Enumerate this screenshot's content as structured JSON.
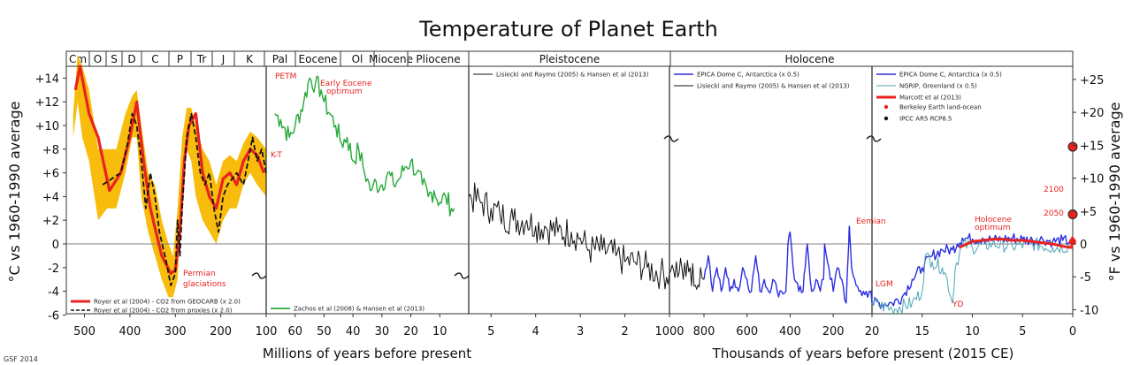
{
  "chart_data": {
    "type": "line",
    "title": "Temperature of Planet Earth",
    "ylabel_left": "°C vs 1960-1990 average",
    "ylabel_right": "°F vs 1960-1990 average",
    "xlabel_millions": "Millions of years before present",
    "xlabel_thousands": "Thousands of years before present (2015 CE)",
    "credit": "GSF 2014",
    "ylim_c": [
      -6,
      15
    ],
    "yticks_c": [
      "+14",
      "+12",
      "+10",
      "+8",
      "+6",
      "+4",
      "+2",
      "0",
      "-2",
      "-4",
      "-6"
    ],
    "yticks_f": [
      "+25",
      "+20",
      "+15",
      "+10",
      "+5",
      "0",
      "-5",
      "-10"
    ],
    "grid": false,
    "colors": {
      "proxy_band": "#f8b800",
      "red": "#e8231e",
      "green": "#27a93a",
      "black": "#111111",
      "blue": "#2b2ee0",
      "cyan": "#4fa6b8",
      "zero_line": "#808080"
    },
    "eras": [
      {
        "label": "Cm"
      },
      {
        "label": "O"
      },
      {
        "label": "S"
      },
      {
        "label": "D"
      },
      {
        "label": "C"
      },
      {
        "label": "P"
      },
      {
        "label": "Tr"
      },
      {
        "label": "J"
      },
      {
        "label": "K"
      },
      {
        "label": "Pal"
      },
      {
        "label": "Eocene"
      },
      {
        "label": "Ol"
      },
      {
        "label": "Miocene"
      },
      {
        "label": "Pliocene"
      },
      {
        "label": "Pleistocene"
      },
      {
        "label": "Holocene"
      }
    ],
    "panels": [
      {
        "name": "panel1",
        "unit": "Ma",
        "range": [
          540,
          100
        ],
        "ticks": [
          "500",
          "400",
          "300",
          "200",
          "100"
        ]
      },
      {
        "name": "panel2",
        "unit": "Ma",
        "range": [
          70,
          0
        ],
        "ticks": [
          "60",
          "50",
          "40",
          "30",
          "20",
          "10"
        ]
      },
      {
        "name": "panel3",
        "unit": "Ma",
        "range": [
          5.5,
          1
        ],
        "ticks": [
          "5",
          "4",
          "3",
          "2"
        ]
      },
      {
        "name": "panel4",
        "unit": "ka",
        "range": [
          1000,
          20
        ],
        "ticks": [
          "1000",
          "800",
          "600",
          "400",
          "200",
          "20"
        ]
      },
      {
        "name": "panel5",
        "unit": "ka",
        "range": [
          20,
          0
        ],
        "ticks": [
          "15",
          "10",
          "5",
          "0"
        ]
      }
    ],
    "legends": {
      "panel1": [
        "Royer et al (2004) - CO2 from GEOCARB (x 2.0)",
        "Royer et al (2004) - CO2 from proxies (x 2.0)"
      ],
      "panel2": [
        "Zachos et al (2008) & Hansen et al (2013)"
      ],
      "panel3": [
        "Lisiecki and Raymo (2005) & Hansen et al (2013)"
      ],
      "panel4": [
        "EPICA Dome C, Antarctica (x 0.5)",
        "Lisiecki and Raymo (2005) & Hansen et al (2013)"
      ],
      "panel5": [
        "EPICA Dome C, Antarctica (x 0.5)",
        "NGRIP, Greenland (x 0.5)",
        "Marcott et al (2013)",
        "Berkeley Earth land-ocean",
        "IPCC AR5 RCP8.5"
      ]
    },
    "annotations": {
      "petm": "PETM",
      "early_eocene": "Early Eocene optimum",
      "kt": "K-T",
      "permian": "Permian glaciations",
      "eemian": "Eemian",
      "lgm": "LGM",
      "yd": "YD",
      "holocene_opt": "Holocene optimum",
      "y2100": "2100",
      "y2050": "2050"
    },
    "series": [
      {
        "name": "Royer et al (2004) - CO2 from GEOCARB (x 2.0)",
        "panel": "panel1",
        "x": [
          520,
          510,
          490,
          470,
          445,
          420,
          400,
          385,
          370,
          355,
          330,
          310,
          300,
          290,
          280,
          270,
          255,
          240,
          225,
          210,
          195,
          180,
          165,
          150,
          135,
          120,
          105
        ],
        "y": [
          13,
          15,
          11,
          9,
          4.5,
          6,
          9,
          12,
          7,
          3,
          -1,
          -2.5,
          -2.2,
          1,
          7,
          10,
          11,
          6,
          4,
          3,
          5.5,
          6,
          5,
          7,
          8,
          7.5,
          6
        ]
      },
      {
        "name": "Royer et al (2004) - CO2 from proxies (x 2.0)",
        "panel": "panel1",
        "x": [
          460,
          440,
          420,
          405,
          395,
          385,
          375,
          365,
          355,
          345,
          335,
          320,
          310,
          300,
          295,
          290,
          285,
          275,
          265,
          255,
          245,
          235,
          225,
          215,
          205,
          195,
          185,
          175,
          165,
          150,
          140,
          130,
          120,
          110,
          100
        ],
        "y": [
          5,
          5.5,
          6,
          8.5,
          11,
          10,
          7,
          3,
          6,
          4,
          1,
          -1.5,
          -3.5,
          -2.5,
          2,
          -1,
          3,
          9,
          11,
          9,
          6,
          5,
          6,
          3,
          1,
          4,
          5,
          5.5,
          6,
          5,
          7,
          9,
          7,
          8,
          6
        ]
      },
      {
        "name": "Zachos et al (2008) & Hansen et al (2013)",
        "panel": "panel2",
        "x": [
          67,
          65,
          62,
          60,
          57,
          55,
          53,
          51,
          50,
          48,
          46,
          44,
          42,
          40,
          38,
          36,
          35,
          34,
          33,
          30,
          28,
          26,
          24,
          22,
          20,
          18,
          16,
          14,
          12,
          10,
          8,
          6,
          5
        ],
        "y": [
          11,
          10.5,
          9,
          10,
          12,
          14,
          13.5,
          13,
          12,
          11,
          10,
          8.5,
          9,
          7,
          8,
          6,
          5.5,
          4.5,
          5,
          5,
          6,
          5,
          5.5,
          6.5,
          7,
          6,
          5,
          4,
          4.5,
          3.5,
          4,
          3,
          3
        ]
      },
      {
        "name": "Lisiecki and Raymo (2005) & Hansen et al (2013)",
        "panel": "panel3",
        "x": [
          5.5,
          5.2,
          5.0,
          4.8,
          4.5,
          4.2,
          4.0,
          3.8,
          3.5,
          3.2,
          3.0,
          2.8,
          2.5,
          2.2,
          2.0,
          1.8,
          1.5,
          1.2,
          1.0
        ],
        "y": [
          4,
          3.5,
          3,
          2.5,
          2,
          2,
          1.5,
          1.5,
          1,
          1,
          0.5,
          -0.5,
          -0.5,
          -1,
          -1.5,
          -1.5,
          -2,
          -2.5,
          -2.5
        ]
      },
      {
        "name": "EPICA Dome C, Antarctica (x 0.5)",
        "panel": "panel4",
        "x": [
          800,
          780,
          760,
          740,
          720,
          700,
          680,
          660,
          640,
          620,
          600,
          580,
          560,
          540,
          520,
          500,
          480,
          460,
          440,
          420,
          410,
          400,
          380,
          360,
          340,
          330,
          320,
          300,
          280,
          260,
          245,
          240,
          220,
          200,
          180,
          160,
          140,
          128,
          125,
          115,
          100,
          80,
          60,
          40,
          25,
          20
        ],
        "y": [
          -3,
          -1,
          -4,
          -2,
          -4,
          -2,
          -4,
          -3,
          -4,
          -2,
          -3,
          -4,
          -1,
          -4,
          -3,
          -4,
          -3,
          -4,
          -4,
          -4,
          0,
          1,
          -3,
          -4,
          -4,
          -2,
          0,
          -4,
          -3,
          -4,
          -3,
          0,
          -2,
          -4,
          -2,
          -3,
          -5,
          0,
          1.5,
          -2,
          -3,
          -4,
          -4,
          -4.5,
          -4,
          -5
        ]
      },
      {
        "name": "Lisiecki and Raymo (2005) & Hansen et al (2013)",
        "panel": "panel4",
        "x": [
          1000,
          960,
          920,
          880,
          850,
          820,
          800
        ],
        "y": [
          -2.5,
          -1.5,
          -3,
          -2,
          -3.5,
          -2,
          -3
        ]
      },
      {
        "name": "EPICA Dome C, Antarctica (x 0.5)",
        "panel": "panel5",
        "x": [
          20,
          18,
          17,
          16,
          15,
          14,
          13,
          12,
          11.5,
          11,
          10,
          9,
          8,
          7,
          6,
          5,
          4,
          3,
          2,
          1,
          0.3
        ],
        "y": [
          -5,
          -5,
          -4.5,
          -3,
          -2,
          -1,
          -0.5,
          -0.5,
          0,
          0.5,
          0.4,
          0.5,
          0.3,
          0.4,
          0.5,
          0.4,
          0.3,
          0.4,
          0.2,
          0.3,
          0.2
        ]
      },
      {
        "name": "NGRIP, Greenland (x 0.5)",
        "panel": "panel5",
        "x": [
          20,
          18,
          16,
          15,
          14.7,
          14,
          13,
          12.5,
          12,
          11.7,
          11,
          10,
          8,
          6,
          4,
          2,
          0.3
        ],
        "y": [
          -5,
          -5.5,
          -5,
          -4,
          -1,
          -1.5,
          -2,
          -3,
          -5,
          -2,
          0,
          -0.3,
          0,
          -0.2,
          0,
          -0.3,
          -0.2
        ]
      },
      {
        "name": "Marcott et al (2013)",
        "panel": "panel5",
        "x": [
          11.3,
          10,
          9,
          8,
          7,
          6,
          5,
          4,
          3,
          2,
          1,
          0.2
        ],
        "y": [
          -0.3,
          0.2,
          0.3,
          0.4,
          0.4,
          0.3,
          0.3,
          0.2,
          0.1,
          0,
          -0.2,
          -0.3
        ]
      },
      {
        "name": "Berkeley Earth land-ocean",
        "panel": "panel5",
        "x": [
          0.15,
          0.1,
          0.05,
          0.02
        ],
        "y": [
          -0.4,
          -0.2,
          0.2,
          0.6
        ]
      },
      {
        "name": "IPCC AR5 RCP8.5",
        "panel": "panel5",
        "x": [
          0,
          0
        ],
        "y": [
          2.5,
          8.2
        ]
      }
    ]
  }
}
